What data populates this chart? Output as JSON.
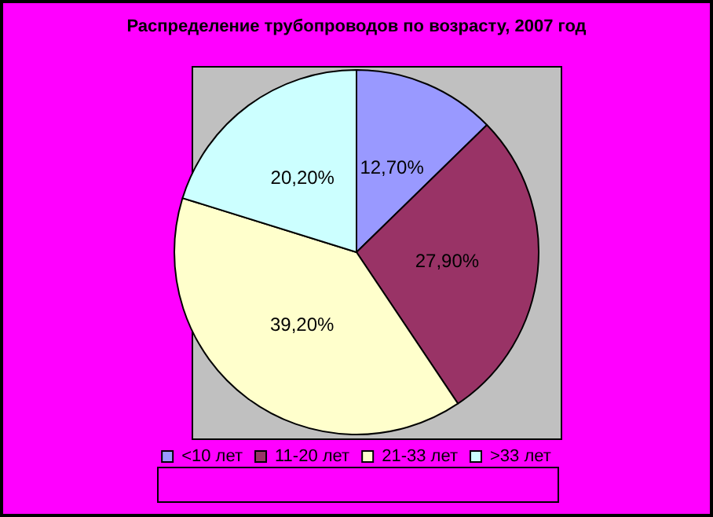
{
  "chart_data": {
    "type": "pie",
    "title": "Распределение трубопроводов по возрасту, 2007 год",
    "categories": [
      "<10 лет",
      "11-20 лет",
      "21-33 лет",
      ">33 лет"
    ],
    "values": [
      12.7,
      27.9,
      39.2,
      20.2
    ],
    "colors": [
      "#9999ff",
      "#993366",
      "#ffffcc",
      "#ccffff"
    ],
    "value_labels": [
      "12,70%",
      "27,90%",
      "39,20%",
      "20,20%"
    ],
    "legend": "bottom"
  }
}
